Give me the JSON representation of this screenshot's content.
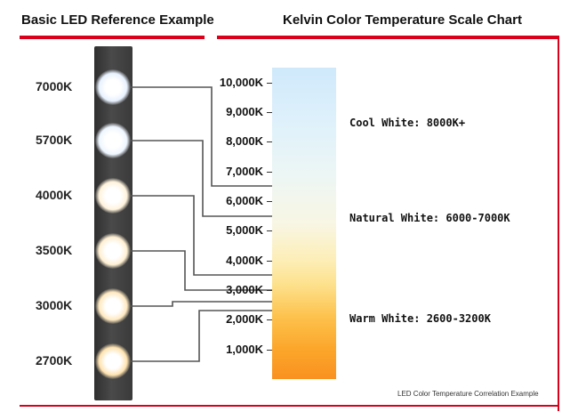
{
  "left_title": "Basic LED Reference Example",
  "right_title": "Kelvin Color Temperature Scale Chart",
  "accent_color": "#d9001b",
  "leds": [
    {
      "kelvin": 7000,
      "label": "7000K",
      "color": "#e8f2ff",
      "target_kelvin": 6500
    },
    {
      "kelvin": 5700,
      "label": "5700K",
      "color": "#eef6ff",
      "target_kelvin": 5500
    },
    {
      "kelvin": 4000,
      "label": "4000K",
      "color": "#fff3dc",
      "target_kelvin": 3500
    },
    {
      "kelvin": 3500,
      "label": "3500K",
      "color": "#fff0d2",
      "target_kelvin": 3000
    },
    {
      "kelvin": 3000,
      "label": "3000K",
      "color": "#ffe9c0",
      "target_kelvin": 2600
    },
    {
      "kelvin": 2700,
      "label": "2700K",
      "color": "#ffe3b0",
      "target_kelvin": 2300
    }
  ],
  "scale": {
    "min_kelvin": 0,
    "max_kelvin": 10500,
    "ticks": [
      {
        "value": 10000,
        "label": "10,000K"
      },
      {
        "value": 9000,
        "label": "9,000K"
      },
      {
        "value": 8000,
        "label": "8,000K"
      },
      {
        "value": 7000,
        "label": "7,000K"
      },
      {
        "value": 6000,
        "label": "6,000K"
      },
      {
        "value": 5000,
        "label": "5,000K"
      },
      {
        "value": 4000,
        "label": "4,000K"
      },
      {
        "value": 3000,
        "label": "3,000K"
      },
      {
        "value": 2000,
        "label": "2,000K"
      },
      {
        "value": 1000,
        "label": "1,000K"
      }
    ]
  },
  "ranges": [
    {
      "label": "Cool White: 8000K+",
      "anchor_kelvin": 8600
    },
    {
      "label": "Natural White: 6000-7000K",
      "anchor_kelvin": 5400
    },
    {
      "label": "Warm White: 2600-3200K",
      "anchor_kelvin": 2000
    }
  ],
  "caption": "LED Color Temperature Correlation Example"
}
